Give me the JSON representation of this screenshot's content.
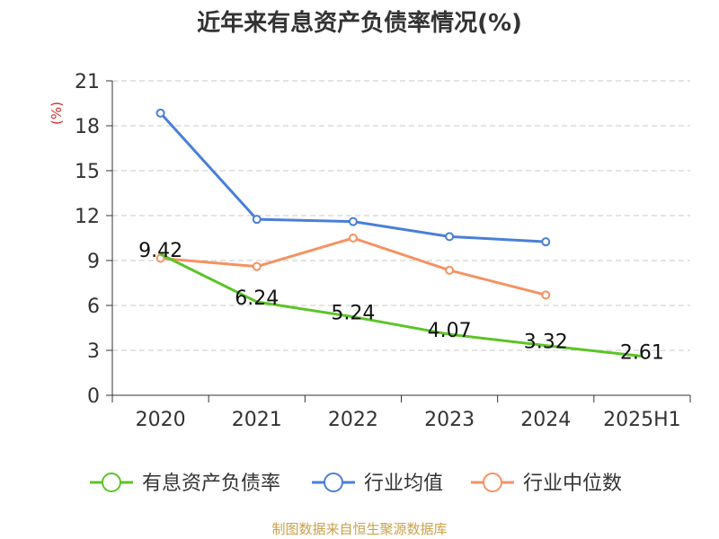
{
  "chart_data": {
    "type": "line",
    "title": "近年来有息资产负债率情况(%)",
    "y_unit": "(%)",
    "categories": [
      "2020",
      "2021",
      "2022",
      "2023",
      "2024",
      "2025H1"
    ],
    "ylim": [
      0,
      21
    ],
    "yticks": [
      0,
      3,
      6,
      9,
      12,
      15,
      18,
      21
    ],
    "grid": "horizontal dashed",
    "legend_position": "bottom",
    "series": [
      {
        "name": "有息资产负债率",
        "color": "#5cc427",
        "values": [
          9.42,
          6.24,
          5.24,
          4.07,
          3.32,
          2.61
        ],
        "labels": [
          "9.42",
          "6.24",
          "5.24",
          "4.07",
          "3.32",
          "2.61"
        ]
      },
      {
        "name": "行业均值",
        "color": "#4a7fd6",
        "values": [
          18.85,
          11.75,
          11.6,
          10.6,
          10.25,
          null
        ]
      },
      {
        "name": "行业中位数",
        "color": "#f59262",
        "values": [
          9.15,
          8.6,
          10.5,
          8.35,
          6.7,
          null
        ]
      }
    ],
    "source": "制图数据来自恒生聚源数据库"
  }
}
